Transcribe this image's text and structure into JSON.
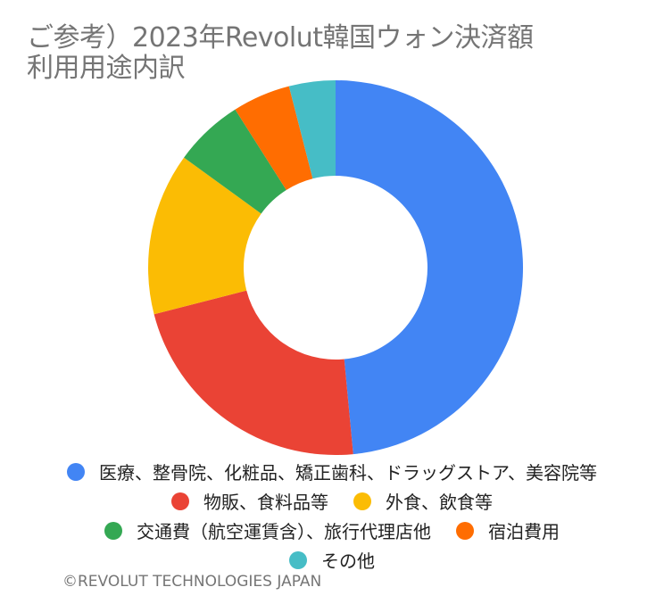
{
  "chart_data": {
    "type": "pie",
    "title_lines": [
      "ご参考）2023年Revolut韓国ウォン決済額",
      "利用用途内訳"
    ],
    "categories": [
      "医療、整骨院、化粧品、矯正歯科、ドラッグストア、美容院等",
      "物販、食料品等",
      "外食、飲食等",
      "交通費（航空運賃含）、旅行代理店他",
      "宿泊費用",
      "その他"
    ],
    "values": [
      48.5,
      22.5,
      14.0,
      6.0,
      5.0,
      4.0
    ],
    "colors": [
      "#4285F4",
      "#EA4335",
      "#FBBC04",
      "#34A853",
      "#FF6D01",
      "#46BDC6"
    ],
    "donut": true,
    "legend_position": "bottom"
  },
  "footer": {
    "copyright": "©REVOLUT TECHNOLOGIES JAPAN"
  }
}
